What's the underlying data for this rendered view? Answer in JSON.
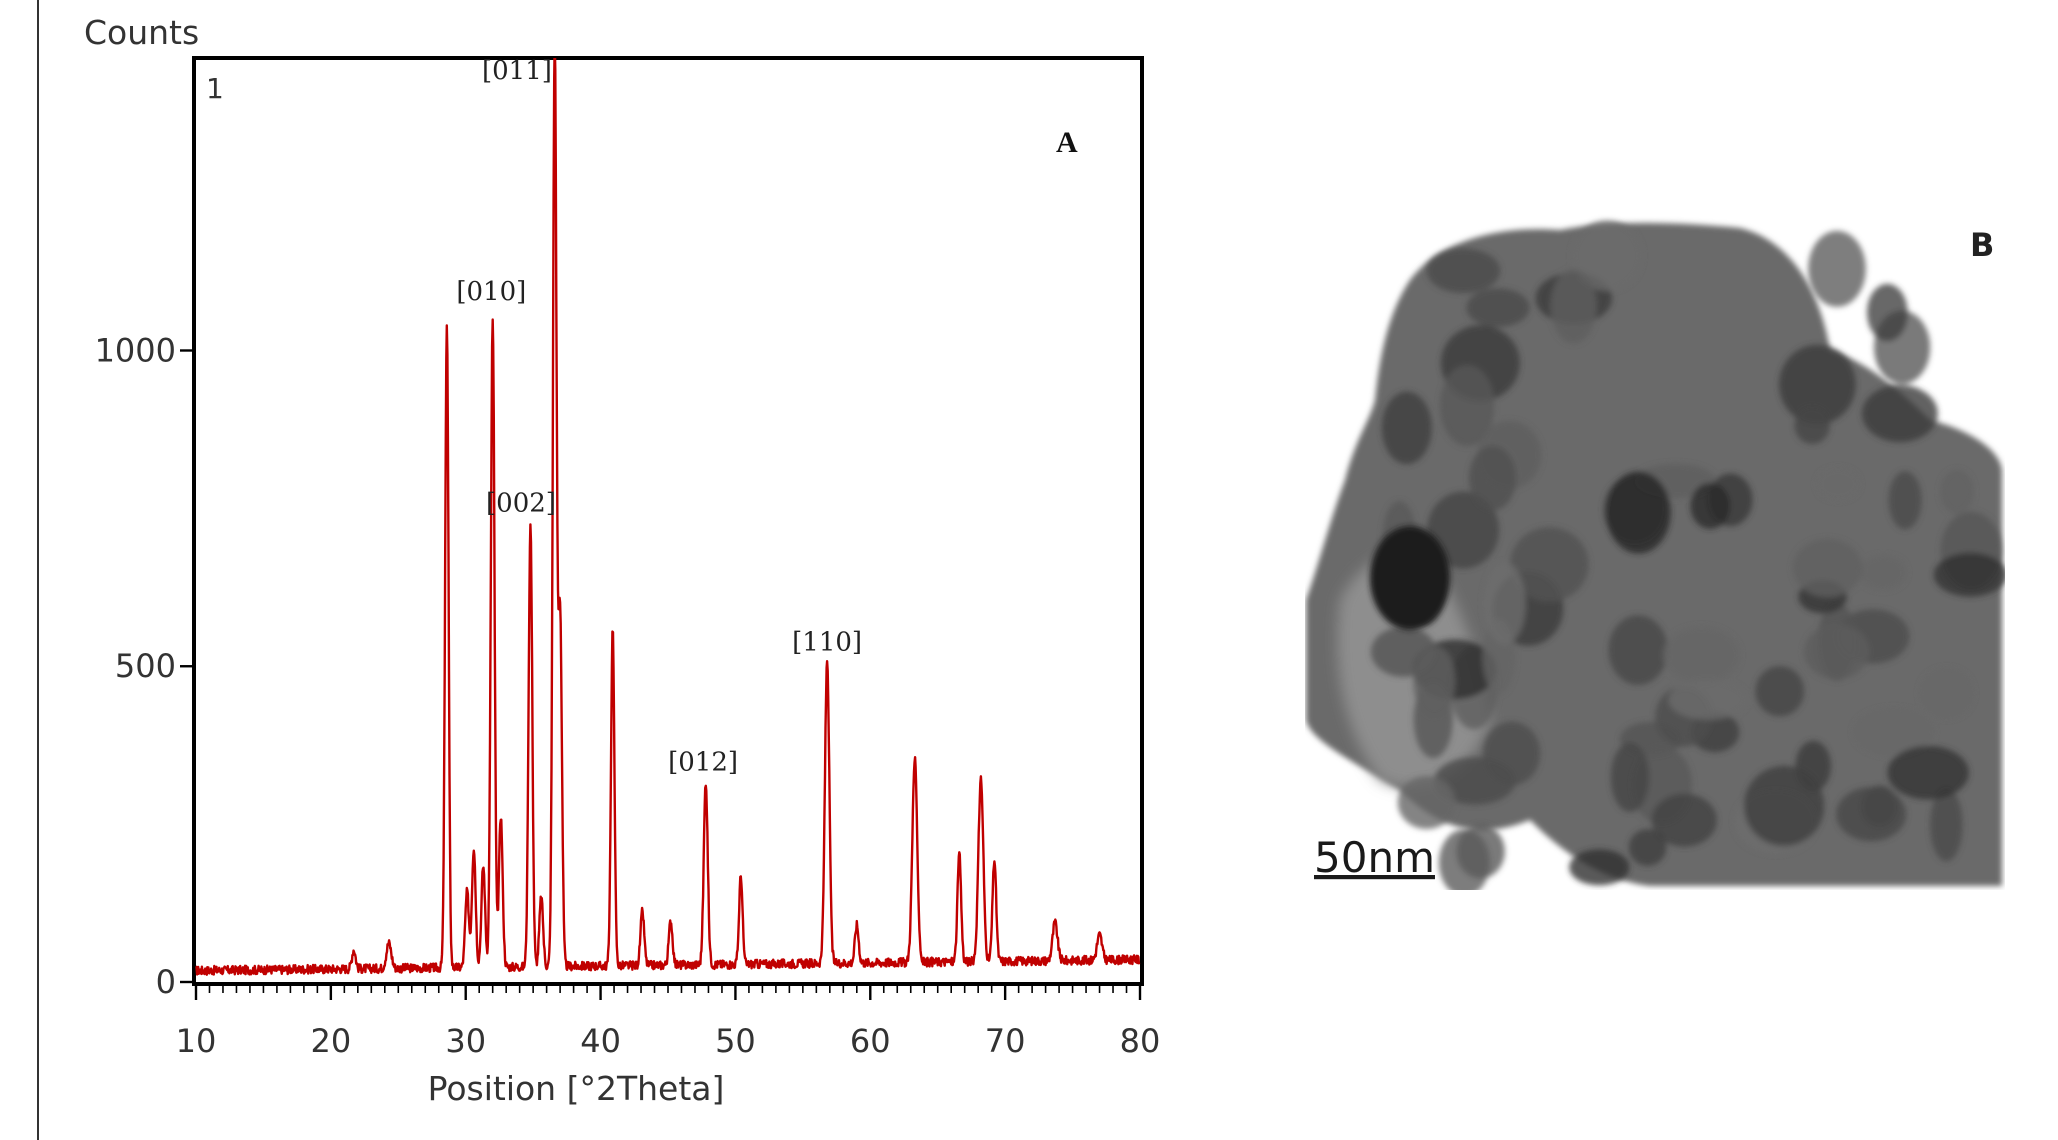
{
  "chart_data": {
    "type": "line",
    "panel_label": "A",
    "scan_number": "1",
    "ylabel": "Counts",
    "xlabel": "Position [°2Theta]",
    "xlim": [
      10,
      80
    ],
    "ylim": [
      0,
      1460
    ],
    "xticks": [
      10,
      20,
      30,
      40,
      50,
      60,
      70,
      80
    ],
    "yticks": [
      0,
      500,
      1000
    ],
    "line_color": "#c00000",
    "baseline": 18,
    "peaks": [
      {
        "x": 21.7,
        "y": 30,
        "w": 0.15
      },
      {
        "x": 24.3,
        "y": 40,
        "w": 0.2
      },
      {
        "x": 28.6,
        "y": 1020,
        "w": 0.14
      },
      {
        "x": 30.1,
        "y": 120,
        "w": 0.15
      },
      {
        "x": 30.6,
        "y": 190,
        "w": 0.15
      },
      {
        "x": 31.3,
        "y": 160,
        "w": 0.15
      },
      {
        "x": 32.0,
        "y": 1025,
        "w": 0.15
      },
      {
        "x": 32.6,
        "y": 240,
        "w": 0.15
      },
      {
        "x": 34.8,
        "y": 700,
        "w": 0.15
      },
      {
        "x": 35.6,
        "y": 110,
        "w": 0.15
      },
      {
        "x": 36.6,
        "y": 1460,
        "w": 0.15
      },
      {
        "x": 37.0,
        "y": 560,
        "w": 0.15
      },
      {
        "x": 40.9,
        "y": 530,
        "w": 0.14
      },
      {
        "x": 43.1,
        "y": 85,
        "w": 0.15
      },
      {
        "x": 45.2,
        "y": 70,
        "w": 0.15
      },
      {
        "x": 47.8,
        "y": 290,
        "w": 0.16
      },
      {
        "x": 50.4,
        "y": 140,
        "w": 0.14
      },
      {
        "x": 56.8,
        "y": 480,
        "w": 0.18
      },
      {
        "x": 59.0,
        "y": 60,
        "w": 0.15
      },
      {
        "x": 63.3,
        "y": 320,
        "w": 0.2
      },
      {
        "x": 66.6,
        "y": 170,
        "w": 0.15
      },
      {
        "x": 68.2,
        "y": 290,
        "w": 0.2
      },
      {
        "x": 69.2,
        "y": 160,
        "w": 0.15
      },
      {
        "x": 73.7,
        "y": 60,
        "w": 0.2
      },
      {
        "x": 77.0,
        "y": 40,
        "w": 0.2
      }
    ],
    "annotations": [
      {
        "label": "[010]",
        "x": 31.9,
        "y": 1080
      },
      {
        "label": "[002]",
        "x": 34.1,
        "y": 745
      },
      {
        "label": "[011]",
        "x": 33.8,
        "y": 1430
      },
      {
        "label": "[012]",
        "x": 47.6,
        "y": 335
      },
      {
        "label": "[110]",
        "x": 56.8,
        "y": 525
      }
    ]
  },
  "panel_b": {
    "letter": "B",
    "scale_bar": "50nm"
  }
}
